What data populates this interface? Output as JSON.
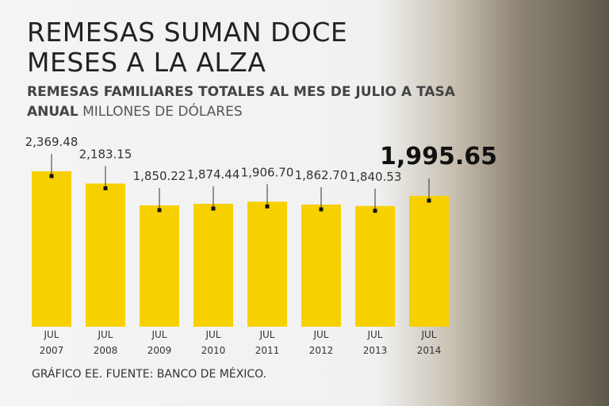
{
  "chart_data": {
    "type": "bar",
    "title": "REMESAS SUMAN DOCE MESES A LA ALZA",
    "subtitle": "REMESAS FAMILIARES TOTALES AL MES DE JULIO A TASA ANUAL",
    "unit": "MILLONES DE DÓLARES",
    "source": "GRÁFICO EE. FUENTE: BANCO DE MÉXICO.",
    "categories": [
      [
        "JUL",
        "2007"
      ],
      [
        "JUL",
        "2008"
      ],
      [
        "JUL",
        "2009"
      ],
      [
        "JUL",
        "2010"
      ],
      [
        "JUL",
        "2011"
      ],
      [
        "JUL",
        "2012"
      ],
      [
        "JUL",
        "2013"
      ],
      [
        "JUL",
        "2014"
      ]
    ],
    "values": [
      2369.48,
      2183.15,
      1850.22,
      1874.44,
      1906.7,
      1862.7,
      1840.53,
      1995.65
    ],
    "value_labels": [
      "2,369.48",
      "2,183.15",
      "1,850.22",
      "1,874.44",
      "1,906.70",
      "1,862.70",
      "1,840.53",
      "1,995.65"
    ],
    "color": "#f7d000",
    "ylim": [
      0,
      2600
    ]
  }
}
